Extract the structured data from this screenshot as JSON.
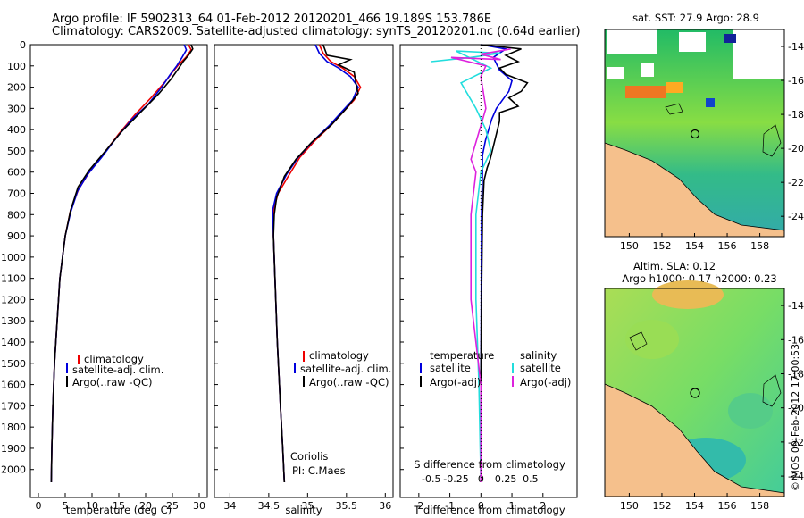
{
  "header": {
    "line1": "Argo profile: IF 5902313_64 01-Feb-2012 20120201_466 19.189S 153.786E",
    "line2": "Climatology: CARS2009. Satellite-adjusted climatology: synTS_20120201.nc (0.64d earlier)"
  },
  "credit": "©IMOS 09-Feb-2012 17:00:53",
  "colors": {
    "climatology": "#ee0000",
    "satellite": "#0000dd",
    "argo": "#000000",
    "sal_sat": "#22dddd",
    "sal_argo": "#dd22dd"
  },
  "depth_axis": {
    "range": [
      0,
      2060
    ],
    "ticks": [
      0,
      100,
      200,
      300,
      400,
      500,
      600,
      700,
      800,
      900,
      1000,
      1100,
      1200,
      1300,
      1400,
      1500,
      1600,
      1700,
      1800,
      1900,
      2000
    ]
  },
  "chart_data": [
    {
      "type": "line",
      "xlabel": "temperature (deg C)",
      "xlim": [
        -1.5,
        31.5
      ],
      "xticks": [
        0,
        5,
        10,
        15,
        20,
        25,
        30
      ],
      "legend": [
        "climatology",
        "satellite-adj. clim.",
        "Argo(..raw -QC)"
      ],
      "series": [
        {
          "name": "climatology",
          "color": "#ee0000",
          "points": [
            [
              28.0,
              0
            ],
            [
              28.5,
              25
            ],
            [
              27.5,
              60
            ],
            [
              26.3,
              90
            ],
            [
              25,
              130
            ],
            [
              23.8,
              170
            ],
            [
              21,
              250
            ],
            [
              18,
              330
            ],
            [
              15,
              420
            ],
            [
              12,
              520
            ],
            [
              9.5,
              600
            ],
            [
              7.5,
              680
            ],
            [
              6,
              780
            ],
            [
              5,
              900
            ],
            [
              4,
              1100
            ],
            [
              3.5,
              1300
            ],
            [
              3,
              1500
            ],
            [
              2.7,
              1700
            ],
            [
              2.5,
              1900
            ],
            [
              2.4,
              2060
            ]
          ]
        },
        {
          "name": "satellite-adj. clim.",
          "color": "#0000dd",
          "points": [
            [
              27.2,
              0
            ],
            [
              27.6,
              25
            ],
            [
              26.8,
              60
            ],
            [
              25.8,
              100
            ],
            [
              24.6,
              140
            ],
            [
              23,
              200
            ],
            [
              20.5,
              280
            ],
            [
              17.5,
              350
            ],
            [
              14.5,
              440
            ],
            [
              11.8,
              530
            ],
            [
              9.2,
              610
            ],
            [
              7.3,
              690
            ],
            [
              6,
              790
            ],
            [
              5,
              900
            ],
            [
              4,
              1100
            ],
            [
              3.5,
              1300
            ],
            [
              3,
              1500
            ],
            [
              2.7,
              1700
            ],
            [
              2.5,
              1900
            ],
            [
              2.4,
              2060
            ]
          ]
        },
        {
          "name": "Argo(..raw -QC)",
          "color": "#000000",
          "points": [
            [
              28.5,
              0
            ],
            [
              28.8,
              20
            ],
            [
              28,
              50
            ],
            [
              27,
              80
            ],
            [
              26.2,
              110
            ],
            [
              24.8,
              160
            ],
            [
              22.5,
              230
            ],
            [
              19,
              320
            ],
            [
              15.5,
              410
            ],
            [
              12.2,
              510
            ],
            [
              9.5,
              590
            ],
            [
              7.4,
              670
            ],
            [
              6,
              780
            ],
            [
              5,
              900
            ],
            [
              4,
              1100
            ],
            [
              3.5,
              1300
            ],
            [
              3,
              1500
            ],
            [
              2.7,
              1700
            ],
            [
              2.5,
              1900
            ],
            [
              2.4,
              2060
            ]
          ]
        }
      ]
    },
    {
      "type": "line",
      "xlabel": "salinity",
      "xlim": [
        33.8,
        36.1
      ],
      "xticks": [
        34,
        34.5,
        35,
        35.5,
        36
      ],
      "legend": [
        "climatology",
        "satellite-adj. clim.",
        "Argo(..raw -QC)"
      ],
      "annotation": [
        "Coriolis",
        "PI: C.Maes"
      ],
      "series": [
        {
          "name": "climatology",
          "color": "#ee0000",
          "points": [
            [
              35.15,
              0
            ],
            [
              35.2,
              40
            ],
            [
              35.3,
              80
            ],
            [
              35.45,
              110
            ],
            [
              35.6,
              150
            ],
            [
              35.68,
              200
            ],
            [
              35.6,
              260
            ],
            [
              35.45,
              320
            ],
            [
              35.3,
              380
            ],
            [
              35.1,
              450
            ],
            [
              34.9,
              530
            ],
            [
              34.75,
              620
            ],
            [
              34.62,
              700
            ],
            [
              34.56,
              780
            ],
            [
              34.56,
              900
            ],
            [
              34.58,
              1100
            ],
            [
              34.61,
              1400
            ],
            [
              34.65,
              1700
            ],
            [
              34.68,
              1900
            ],
            [
              34.7,
              2060
            ]
          ]
        },
        {
          "name": "satellite-adj. clim.",
          "color": "#0000dd",
          "points": [
            [
              35.1,
              0
            ],
            [
              35.15,
              40
            ],
            [
              35.25,
              80
            ],
            [
              35.4,
              110
            ],
            [
              35.55,
              150
            ],
            [
              35.65,
              200
            ],
            [
              35.58,
              260
            ],
            [
              35.43,
              320
            ],
            [
              35.28,
              380
            ],
            [
              35.08,
              450
            ],
            [
              34.88,
              530
            ],
            [
              34.73,
              610
            ],
            [
              34.6,
              700
            ],
            [
              34.55,
              780
            ],
            [
              34.56,
              900
            ],
            [
              34.58,
              1100
            ],
            [
              34.61,
              1400
            ],
            [
              34.65,
              1700
            ],
            [
              34.68,
              1900
            ],
            [
              34.7,
              2060
            ]
          ]
        },
        {
          "name": "Argo(..raw -QC)",
          "color": "#000000",
          "points": [
            [
              35.2,
              0
            ],
            [
              35.25,
              50
            ],
            [
              35.55,
              70
            ],
            [
              35.4,
              95
            ],
            [
              35.6,
              130
            ],
            [
              35.62,
              180
            ],
            [
              35.65,
              230
            ],
            [
              35.5,
              300
            ],
            [
              35.3,
              380
            ],
            [
              35.05,
              460
            ],
            [
              34.85,
              540
            ],
            [
              34.7,
              620
            ],
            [
              34.6,
              720
            ],
            [
              34.57,
              800
            ],
            [
              34.56,
              900
            ],
            [
              34.58,
              1100
            ],
            [
              34.61,
              1400
            ],
            [
              34.65,
              1700
            ],
            [
              34.68,
              1900
            ],
            [
              34.7,
              2060
            ]
          ]
        }
      ]
    },
    {
      "type": "line",
      "xlabel": "T difference from climatology",
      "x2label": "S difference from climatology",
      "xlim": [
        -2.6,
        3.1
      ],
      "xticks": [
        -2,
        -1,
        0,
        1,
        2
      ],
      "x2ticks": [
        -0.5,
        -0.25,
        0,
        0.25,
        0.5
      ],
      "legend_temperature_title": "temperature",
      "legend_salinity_title": "salinity",
      "legend": [
        "satellite",
        "Argo(-adj)",
        "satellite",
        "Argo(-adj)"
      ],
      "series": [
        {
          "name": "satellite",
          "color": "#0000dd",
          "points": [
            [
              0,
              0
            ],
            [
              0.8,
              20
            ],
            [
              0.4,
              60
            ],
            [
              0.6,
              120
            ],
            [
              1,
              170
            ],
            [
              0.9,
              220
            ],
            [
              0.7,
              260
            ],
            [
              0.5,
              300
            ],
            [
              0.35,
              350
            ],
            [
              0.25,
              400
            ],
            [
              0.15,
              450
            ],
            [
              0.05,
              520
            ],
            [
              0.05,
              600
            ],
            [
              0.02,
              800
            ],
            [
              0.01,
              1200
            ],
            [
              0,
              1600
            ],
            [
              0,
              2060
            ]
          ]
        },
        {
          "name": "Argo(-adj)",
          "color": "#000000",
          "points": [
            [
              0,
              0
            ],
            [
              1.3,
              20
            ],
            [
              0.8,
              50
            ],
            [
              1.2,
              80
            ],
            [
              0.6,
              110
            ],
            [
              0.8,
              140
            ],
            [
              1.5,
              180
            ],
            [
              1.3,
              220
            ],
            [
              0.9,
              250
            ],
            [
              1.2,
              290
            ],
            [
              0.6,
              320
            ],
            [
              0.6,
              360
            ],
            [
              0.5,
              420
            ],
            [
              0.4,
              480
            ],
            [
              0.3,
              540
            ],
            [
              0.2,
              580
            ],
            [
              0.1,
              640
            ],
            [
              0.05,
              800
            ],
            [
              0.02,
              1200
            ],
            [
              0,
              1600
            ],
            [
              0,
              2060
            ]
          ]
        },
        {
          "name": "satellite (salinity)",
          "color": "#22dddd",
          "points": [
            [
              -0.5,
              80
            ],
            [
              -0.1,
              60
            ],
            [
              0.2,
              40
            ],
            [
              -0.25,
              30
            ],
            [
              0.1,
              110
            ],
            [
              -0.2,
              180
            ],
            [
              -0.05,
              300
            ],
            [
              0.05,
              400
            ],
            [
              0.1,
              500
            ],
            [
              0,
              600
            ],
            [
              -0.05,
              800
            ],
            [
              -0.05,
              1200
            ],
            [
              -0.02,
              1600
            ],
            [
              0,
              2060
            ]
          ]
        },
        {
          "name": "Argo(-adj) (salinity)",
          "color": "#dd22dd",
          "points": [
            [
              0.3,
              20
            ],
            [
              0,
              45
            ],
            [
              0.2,
              70
            ],
            [
              -0.3,
              60
            ],
            [
              0.05,
              100
            ],
            [
              0,
              150
            ],
            [
              0.05,
              300
            ],
            [
              -0.1,
              540
            ],
            [
              -0.05,
              600
            ],
            [
              -0.1,
              800
            ],
            [
              -0.1,
              1200
            ],
            [
              0,
              1600
            ],
            [
              0,
              2060
            ]
          ]
        }
      ]
    }
  ],
  "maps": [
    {
      "title": "sat. SST: 27.9 Argo: 28.9",
      "xticks": [
        "150",
        "152",
        "154",
        "156",
        "158"
      ],
      "yticks": [
        "-14",
        "-16",
        "-18",
        "-20",
        "-22",
        "-24"
      ]
    },
    {
      "title1": "Altim. SLA: 0.12",
      "title2": "Argo h1000: 0.17 h2000: 0.23",
      "xticks": [
        "150",
        "152",
        "154",
        "156",
        "158"
      ],
      "yticks": [
        "-14",
        "-16",
        "-18",
        "-20",
        "-22",
        "-24"
      ]
    }
  ]
}
